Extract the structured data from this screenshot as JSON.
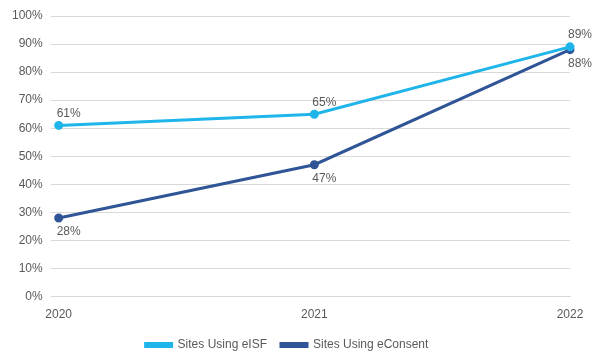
{
  "chart_data": {
    "type": "line",
    "categories": [
      "2020",
      "2021",
      "2022"
    ],
    "series": [
      {
        "name": "Sites Using eISF",
        "color": "#1fb5ea",
        "marker": "circle",
        "values": [
          61,
          65,
          89
        ],
        "value_labels": [
          "61%",
          "65%",
          "89%"
        ]
      },
      {
        "name": "Sites Using eConsent",
        "color": "#2f5597",
        "marker": "circle",
        "values": [
          28,
          47,
          88
        ],
        "value_labels": [
          "28%",
          "47%",
          "88%"
        ]
      }
    ],
    "ylim": [
      0,
      100
    ],
    "yticks": [
      {
        "value": 0,
        "label": "0%"
      },
      {
        "value": 10,
        "label": "10%"
      },
      {
        "value": 20,
        "label": "20%"
      },
      {
        "value": 30,
        "label": "30%"
      },
      {
        "value": 40,
        "label": "40%"
      },
      {
        "value": 50,
        "label": "50%"
      },
      {
        "value": 60,
        "label": "60%"
      },
      {
        "value": 70,
        "label": "70%"
      },
      {
        "value": 80,
        "label": "80%"
      },
      {
        "value": 90,
        "label": "90%"
      },
      {
        "value": 100,
        "label": "100%"
      }
    ],
    "grid": true,
    "legend": "bottom",
    "data_labels": true
  }
}
